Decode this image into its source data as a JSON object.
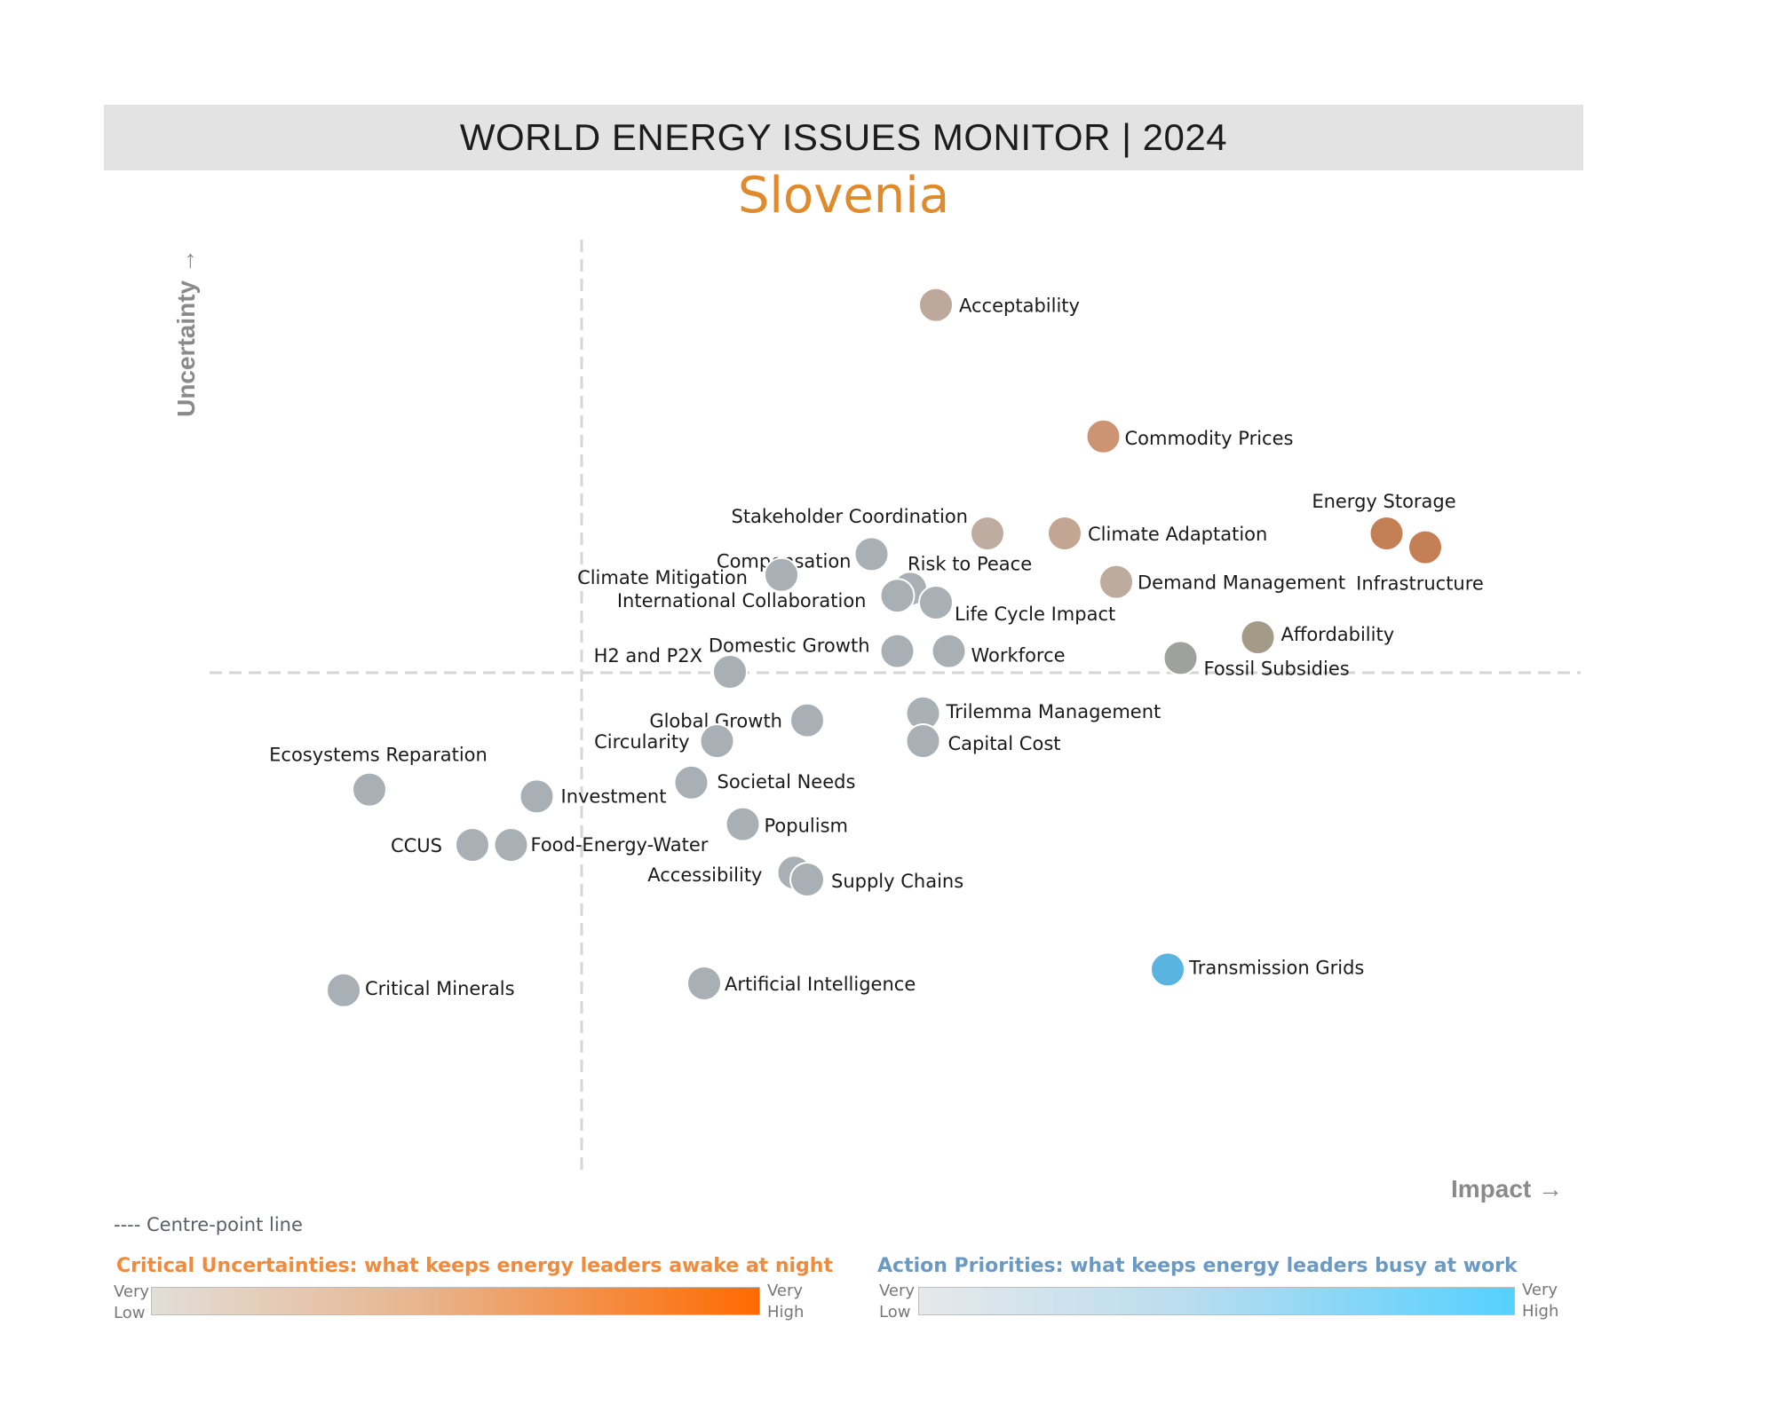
{
  "header": {
    "title": "WORLD ENERGY ISSUES MONITOR | 2024",
    "country": "Slovenia"
  },
  "chart_data": {
    "type": "scatter",
    "xlabel": "Impact →",
    "ylabel": "Uncertainty →",
    "centre_line_note": "---- Centre-point line",
    "colors": {
      "neutral": "#a8b0b6",
      "action_priority": "#5ab4e0",
      "critical_high": "#c8865a",
      "critical_mid": "#b9a393"
    },
    "points": [
      {
        "label": "Acceptability",
        "x": 0.52,
        "y": 0.88,
        "color": "#bda89b"
      },
      {
        "label": "Commodity Prices",
        "x": 0.65,
        "y": 0.69,
        "color": "#cc9472"
      },
      {
        "label": "Energy Storage",
        "x": 0.87,
        "y": 0.55,
        "color": "#c57f55"
      },
      {
        "label": "Infrastructure",
        "x": 0.9,
        "y": 0.53,
        "color": "#c57f55"
      },
      {
        "label": "Stakeholder Coordination",
        "x": 0.56,
        "y": 0.55,
        "color": "#bfaca0"
      },
      {
        "label": "Climate Adaptation",
        "x": 0.62,
        "y": 0.55,
        "color": "#c3a594"
      },
      {
        "label": "Compensation",
        "x": 0.47,
        "y": 0.52,
        "color": "#a8b0b6"
      },
      {
        "label": "Climate Mitigation",
        "x": 0.4,
        "y": 0.49,
        "color": "#a8b0b6"
      },
      {
        "label": "Risk to Peace",
        "x": 0.5,
        "y": 0.47,
        "color": "#a8b0b6"
      },
      {
        "label": "International Collaboration",
        "x": 0.49,
        "y": 0.46,
        "color": "#a8b0b6"
      },
      {
        "label": "Life Cycle Impact",
        "x": 0.52,
        "y": 0.45,
        "color": "#a8b0b6"
      },
      {
        "label": "Demand Management",
        "x": 0.66,
        "y": 0.48,
        "color": "#bdab9e"
      },
      {
        "label": "Domestic Growth",
        "x": 0.49,
        "y": 0.38,
        "color": "#a8b0b6"
      },
      {
        "label": "Workforce",
        "x": 0.53,
        "y": 0.38,
        "color": "#a8b0b6"
      },
      {
        "label": "Affordability",
        "x": 0.77,
        "y": 0.4,
        "color": "#a39a87"
      },
      {
        "label": "Fossil Subsidies",
        "x": 0.71,
        "y": 0.37,
        "color": "#9ea19d"
      },
      {
        "label": "H2 and P2X",
        "x": 0.36,
        "y": 0.35,
        "color": "#a8b0b6"
      },
      {
        "label": "Global Growth",
        "x": 0.42,
        "y": 0.28,
        "color": "#a8b0b6"
      },
      {
        "label": "Trilemma Management",
        "x": 0.51,
        "y": 0.29,
        "color": "#a8b0b6"
      },
      {
        "label": "Circularity",
        "x": 0.35,
        "y": 0.25,
        "color": "#a8b0b6"
      },
      {
        "label": "Capital Cost",
        "x": 0.51,
        "y": 0.25,
        "color": "#a8b0b6"
      },
      {
        "label": "Ecosystems Reparation",
        "x": 0.08,
        "y": 0.18,
        "color": "#a8b0b6"
      },
      {
        "label": "Investment",
        "x": 0.21,
        "y": 0.17,
        "color": "#a8b0b6"
      },
      {
        "label": "Societal Needs",
        "x": 0.33,
        "y": 0.19,
        "color": "#a8b0b6"
      },
      {
        "label": "Populism",
        "x": 0.37,
        "y": 0.13,
        "color": "#a8b0b6"
      },
      {
        "label": "CCUS",
        "x": 0.16,
        "y": 0.1,
        "color": "#a8b0b6"
      },
      {
        "label": "Food-Energy-Water",
        "x": 0.19,
        "y": 0.1,
        "color": "#a8b0b6"
      },
      {
        "label": "Accessibility",
        "x": 0.41,
        "y": 0.06,
        "color": "#a8b0b6"
      },
      {
        "label": "Supply Chains",
        "x": 0.42,
        "y": 0.05,
        "color": "#a8b0b6"
      },
      {
        "label": "Transmission Grids",
        "x": 0.7,
        "y": -0.08,
        "color": "#5ab4e0"
      },
      {
        "label": "Artificial Intelligence",
        "x": 0.34,
        "y": -0.1,
        "color": "#a8b0b6"
      },
      {
        "label": "Critical Minerals",
        "x": 0.06,
        "y": -0.11,
        "color": "#a8b0b6"
      }
    ]
  },
  "legend": {
    "uncertainties_title": "Critical Uncertainties: what keeps energy leaders awake at night",
    "priorities_title": "Action Priorities: what keeps energy leaders busy at work",
    "scale_low_1": "Very",
    "scale_low_2": "Low",
    "scale_high_1": "Very",
    "scale_high_2": "High"
  }
}
